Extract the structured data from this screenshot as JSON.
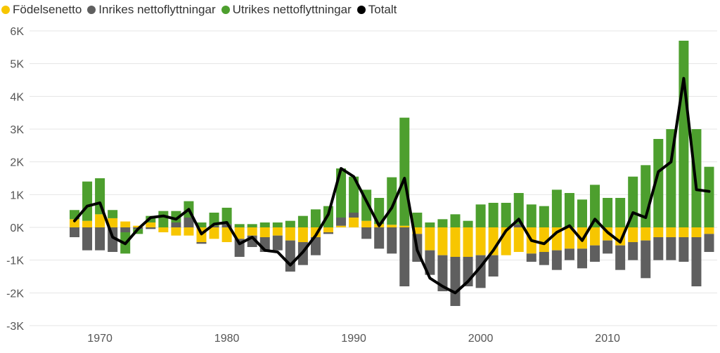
{
  "chart_data": {
    "type": "bar",
    "x": [
      1968,
      1969,
      1970,
      1971,
      1972,
      1973,
      1974,
      1975,
      1976,
      1977,
      1978,
      1979,
      1980,
      1981,
      1982,
      1983,
      1984,
      1985,
      1986,
      1987,
      1988,
      1989,
      1990,
      1991,
      1992,
      1993,
      1994,
      1995,
      1996,
      1997,
      1998,
      1999,
      2000,
      2001,
      2002,
      2003,
      2004,
      2005,
      2006,
      2007,
      2008,
      2009,
      2010,
      2011,
      2012,
      2013,
      2014,
      2015,
      2016,
      2017,
      2018
    ],
    "series": [
      {
        "name": "Födelsenetto",
        "kind": "bar",
        "color": "#f7c600",
        "values": [
          250,
          200,
          400,
          280,
          180,
          50,
          150,
          -150,
          -250,
          -250,
          -450,
          -350,
          -450,
          -350,
          -250,
          -300,
          -250,
          -400,
          -450,
          -300,
          -150,
          50,
          300,
          200,
          100,
          80,
          50,
          -200,
          -700,
          -850,
          -900,
          -900,
          -850,
          -850,
          -850,
          -750,
          -800,
          -750,
          -700,
          -650,
          -650,
          -550,
          -400,
          -550,
          -450,
          -400,
          -300,
          -300,
          -300,
          -300,
          -200
        ]
      },
      {
        "name": "Inrikes nettoflyttningar",
        "kind": "bar",
        "color": "#5f5f5f",
        "values": [
          -300,
          -700,
          -700,
          -750,
          -150,
          -50,
          -50,
          0,
          150,
          300,
          -50,
          50,
          100,
          -550,
          -350,
          -450,
          -450,
          -950,
          -700,
          -550,
          -50,
          250,
          150,
          -350,
          -650,
          -800,
          -1800,
          -850,
          -750,
          -1100,
          -1500,
          -900,
          -1000,
          -650,
          0,
          100,
          -250,
          -400,
          -600,
          -350,
          -600,
          -500,
          -400,
          -750,
          -550,
          -1150,
          -700,
          -700,
          -750,
          -1500,
          -550
        ]
      },
      {
        "name": "Utrikes nettoflyttningar",
        "kind": "bar",
        "color": "#4d9f2e",
        "values": [
          280,
          1200,
          1100,
          250,
          -650,
          -150,
          200,
          500,
          350,
          500,
          150,
          400,
          500,
          100,
          100,
          150,
          150,
          200,
          350,
          550,
          650,
          1500,
          1100,
          950,
          800,
          1450,
          3300,
          450,
          150,
          250,
          400,
          200,
          700,
          750,
          750,
          950,
          700,
          650,
          1150,
          1050,
          850,
          1300,
          900,
          900,
          1550,
          1900,
          2700,
          3000,
          5700,
          3000,
          1850
        ]
      },
      {
        "name": "Totalt",
        "kind": "line",
        "color": "#000000",
        "values": [
          200,
          650,
          750,
          -300,
          -500,
          -50,
          300,
          350,
          250,
          550,
          -200,
          100,
          150,
          -500,
          -300,
          -700,
          -750,
          -1150,
          -750,
          -250,
          400,
          1800,
          1550,
          800,
          50,
          600,
          1500,
          -700,
          -1550,
          -1800,
          -2000,
          -1650,
          -1200,
          -700,
          -100,
          250,
          -400,
          -500,
          -150,
          50,
          -400,
          250,
          -150,
          -450,
          450,
          300,
          1700,
          2000,
          4550,
          1150,
          1100
        ]
      }
    ],
    "title": "",
    "xlabel": "",
    "ylabel": "",
    "xticks": [
      "1970",
      "1980",
      "1990",
      "2000",
      "2010"
    ],
    "yticks": [
      "-3K",
      "-2K",
      "-1K",
      "0K",
      "1K",
      "2K",
      "3K",
      "4K",
      "5K",
      "6K"
    ],
    "ylim": [
      -3000,
      6000
    ],
    "grid": true,
    "legend": "top-left"
  }
}
